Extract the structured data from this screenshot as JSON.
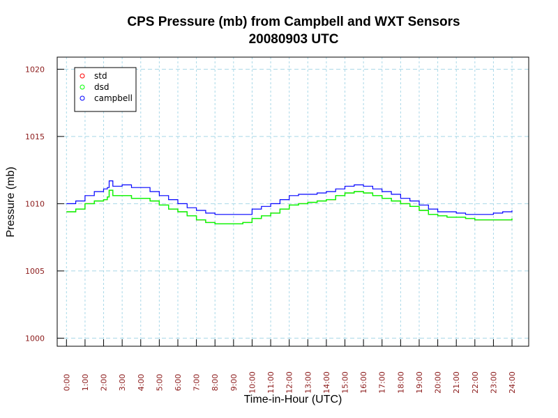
{
  "chart_data": {
    "type": "line",
    "title": "CPS Pressure (mb) from Campbell and WXT Sensors",
    "subtitle": "20080903  UTC",
    "xlabel": "Time-in-Hour (UTC)",
    "ylabel": "Pressure (mb)",
    "xlim": [
      -0.5,
      24.9
    ],
    "ylim": [
      999.4,
      1020.9
    ],
    "x_ticks": [
      "0:00",
      "1:00",
      "2:00",
      "3:00",
      "4:00",
      "5:00",
      "6:00",
      "7:00",
      "8:00",
      "9:00",
      "10:00",
      "11:00",
      "12:00",
      "13:00",
      "14:00",
      "15:00",
      "16:00",
      "17:00",
      "18:00",
      "19:00",
      "20:00",
      "21:00",
      "22:00",
      "23:00",
      "24:00"
    ],
    "y_ticks": [
      1000,
      1005,
      1010,
      1015,
      1020
    ],
    "grid": true,
    "legend_position": "top-left",
    "x": [
      0,
      0.5,
      1,
      1.5,
      2,
      2.2,
      2.3,
      2.5,
      3,
      3.5,
      4,
      4.5,
      5,
      5.5,
      6,
      6.5,
      7,
      7.5,
      8,
      8.5,
      9,
      9.5,
      10,
      10.5,
      11,
      11.5,
      12,
      12.5,
      13,
      13.5,
      14,
      14.5,
      15,
      15.5,
      16,
      16.5,
      17,
      17.5,
      18,
      18.5,
      19,
      19.5,
      20,
      20.5,
      21,
      21.5,
      22,
      22.5,
      23,
      23.5,
      24
    ],
    "series": [
      {
        "name": "std",
        "color": "#ff0000",
        "values": [
          1009.4,
          1009.6,
          1010.0,
          1010.2,
          1010.3,
          1010.5,
          1011.0,
          1010.6,
          1010.6,
          1010.4,
          1010.4,
          1010.2,
          1009.9,
          1009.6,
          1009.4,
          1009.1,
          1008.8,
          1008.6,
          1008.5,
          1008.5,
          1008.5,
          1008.6,
          1008.9,
          1009.1,
          1009.3,
          1009.6,
          1009.9,
          1010.0,
          1010.1,
          1010.2,
          1010.3,
          1010.6,
          1010.8,
          1010.9,
          1010.8,
          1010.6,
          1010.4,
          1010.2,
          1010.0,
          1009.8,
          1009.5,
          1009.2,
          1009.1,
          1009.0,
          1009.0,
          1008.9,
          1008.8,
          1008.8,
          1008.8,
          1008.8,
          1008.9
        ]
      },
      {
        "name": "dsd",
        "color": "#00ff00",
        "values": [
          1009.4,
          1009.6,
          1010.0,
          1010.2,
          1010.3,
          1010.5,
          1011.0,
          1010.6,
          1010.6,
          1010.4,
          1010.4,
          1010.2,
          1009.9,
          1009.6,
          1009.4,
          1009.1,
          1008.8,
          1008.6,
          1008.5,
          1008.5,
          1008.5,
          1008.6,
          1008.9,
          1009.1,
          1009.3,
          1009.6,
          1009.9,
          1010.0,
          1010.1,
          1010.2,
          1010.3,
          1010.6,
          1010.8,
          1010.9,
          1010.8,
          1010.6,
          1010.4,
          1010.2,
          1010.0,
          1009.8,
          1009.5,
          1009.2,
          1009.1,
          1009.0,
          1009.0,
          1008.9,
          1008.8,
          1008.8,
          1008.8,
          1008.8,
          1008.9
        ]
      },
      {
        "name": "campbell",
        "color": "#0000ff",
        "values": [
          1010.0,
          1010.2,
          1010.6,
          1010.9,
          1011.1,
          1011.2,
          1011.7,
          1011.3,
          1011.4,
          1011.2,
          1011.2,
          1010.9,
          1010.6,
          1010.3,
          1010.0,
          1009.7,
          1009.5,
          1009.3,
          1009.2,
          1009.2,
          1009.2,
          1009.2,
          1009.6,
          1009.8,
          1010.0,
          1010.3,
          1010.6,
          1010.7,
          1010.7,
          1010.8,
          1010.9,
          1011.1,
          1011.3,
          1011.4,
          1011.3,
          1011.1,
          1010.9,
          1010.7,
          1010.4,
          1010.2,
          1009.9,
          1009.6,
          1009.4,
          1009.4,
          1009.3,
          1009.2,
          1009.2,
          1009.2,
          1009.3,
          1009.4,
          1009.5
        ]
      }
    ]
  }
}
